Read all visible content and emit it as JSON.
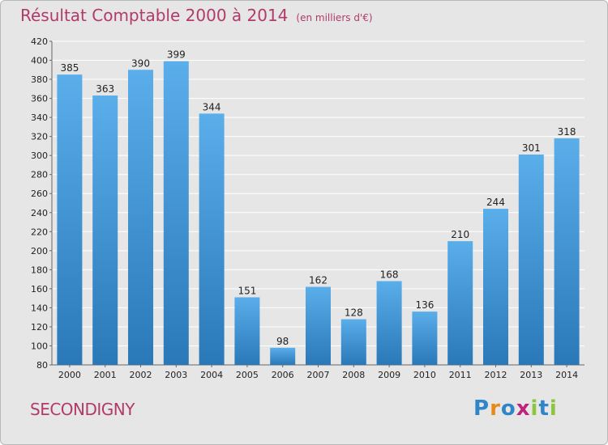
{
  "header": {
    "title": "Résultat Comptable 2000 à 2014",
    "subtitle": "(en milliers d'€)"
  },
  "footer": {
    "commune": "SECONDIGNY",
    "logo": [
      "P",
      "r",
      "o",
      "x",
      "i",
      "t",
      "i"
    ],
    "logo_colors": [
      "#2e86c9",
      "#e88a1a",
      "#2e86c9",
      "#c0237a",
      "#8cc63f",
      "#2e86c9",
      "#8cc63f"
    ]
  },
  "chart_data": {
    "type": "bar",
    "title": "Résultat Comptable 2000 à 2014",
    "subtitle": "(en milliers d'€)",
    "xlabel": "",
    "ylabel": "",
    "categories": [
      "2000",
      "2001",
      "2002",
      "2003",
      "2004",
      "2005",
      "2006",
      "2007",
      "2008",
      "2009",
      "2010",
      "2011",
      "2012",
      "2013",
      "2014"
    ],
    "values": [
      385,
      363,
      390,
      399,
      344,
      151,
      98,
      162,
      128,
      168,
      136,
      210,
      244,
      301,
      318
    ],
    "ylim": [
      80,
      420
    ],
    "yticks": [
      80,
      100,
      120,
      140,
      160,
      180,
      200,
      220,
      240,
      260,
      280,
      300,
      320,
      340,
      360,
      380,
      400,
      420
    ],
    "grid": true,
    "bar_color_top": "#5aaeea",
    "bar_color_bottom": "#2a78b8"
  }
}
